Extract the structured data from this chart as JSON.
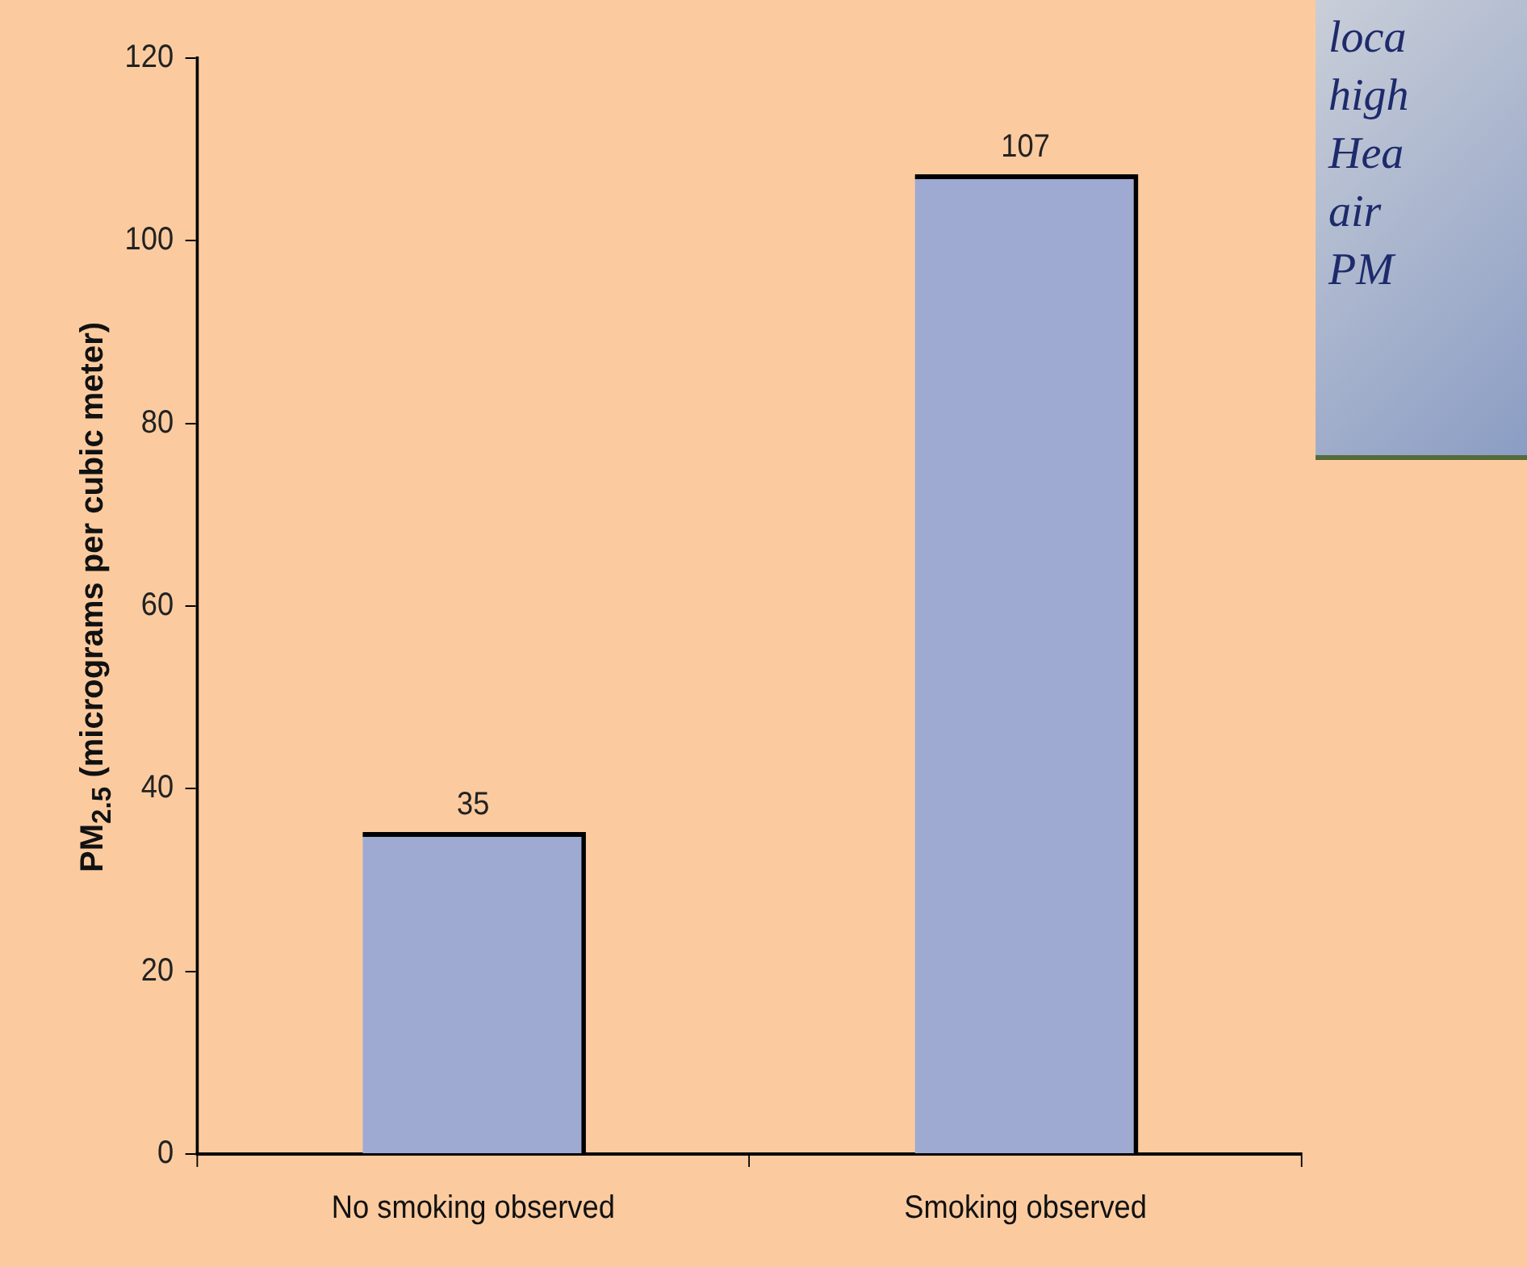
{
  "chart_data": {
    "type": "bar",
    "ylabel": "PM$_{2.5}$ (micrograms per cubic meter)",
    "categories": [
      "No smoking observed",
      "Smoking observed"
    ],
    "values": [
      35,
      107
    ],
    "color": "#9eaad2",
    "ylim": [
      0,
      120
    ],
    "yticks": [
      0,
      20,
      40,
      60,
      80,
      100,
      120
    ],
    "grid": false,
    "data_labels": true,
    "annotations": [
      "loca\nhigh\nHea\nair\nPM"
    ]
  }
}
